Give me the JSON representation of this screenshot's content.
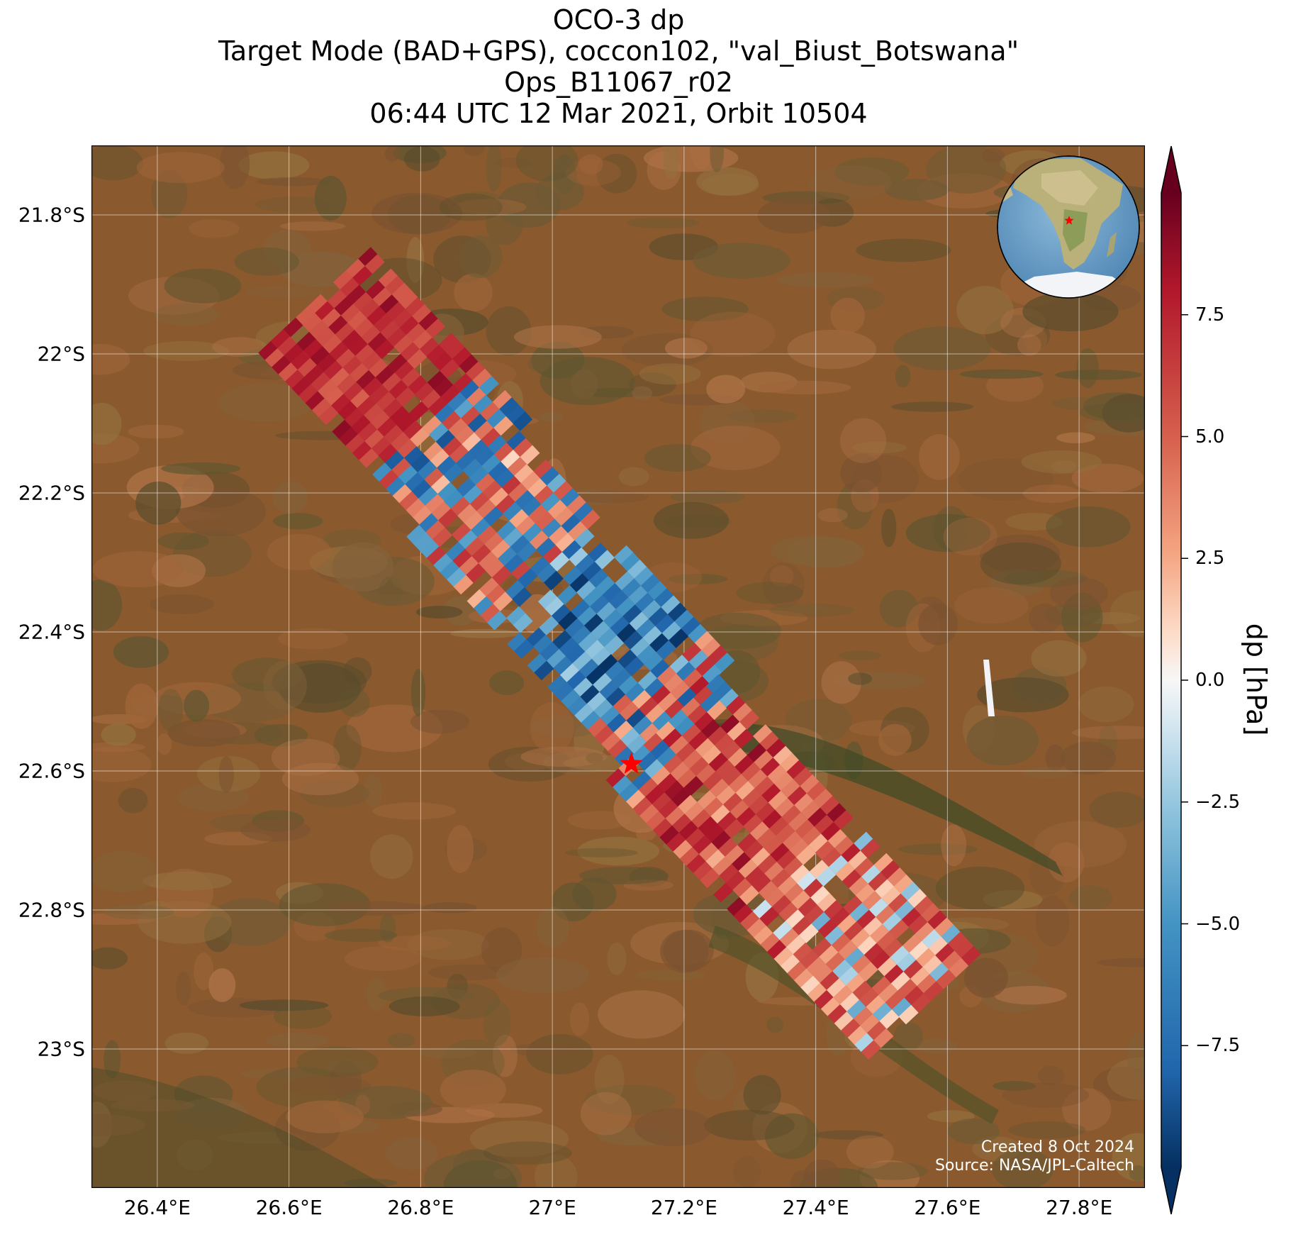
{
  "title": {
    "line1": "OCO-3 dp",
    "line2": "Target Mode (BAD+GPS), coccon102, \"val_Biust_Botswana\"",
    "line3": "Ops_B11067_r02",
    "line4": "06:44 UTC 12 Mar 2021, Orbit 10504"
  },
  "credits": {
    "created": "Created 8 Oct 2024",
    "source": "Source: NASA/JPL-Caltech"
  },
  "colorbar": {
    "label": "dp [hPa]",
    "vmin": -10,
    "vmax": 10,
    "ticks": [
      "−7.5",
      "−5.0",
      "−2.5",
      "0.0",
      "2.5",
      "5.0",
      "7.5"
    ],
    "tick_values": [
      -7.5,
      -5.0,
      -2.5,
      0.0,
      2.5,
      5.0,
      7.5
    ],
    "colormap": "RdBu_r",
    "extend": "both"
  },
  "map": {
    "basemap": "satellite",
    "lon_range": [
      26.3,
      27.9
    ],
    "lat_range": [
      -23.2,
      -21.7
    ],
    "x_ticks": [
      "26.4°E",
      "26.6°E",
      "26.8°E",
      "27°E",
      "27.2°E",
      "27.4°E",
      "27.6°E",
      "27.8°E"
    ],
    "x_tick_values": [
      26.4,
      26.6,
      26.8,
      27.0,
      27.2,
      27.4,
      27.6,
      27.8
    ],
    "y_ticks": [
      "21.8°S",
      "22°S",
      "22.2°S",
      "22.4°S",
      "22.6°S",
      "22.8°S",
      "23°S"
    ],
    "y_tick_values": [
      -21.8,
      -22.0,
      -22.2,
      -22.4,
      -22.6,
      -22.8,
      -23.0
    ],
    "gridlines": true,
    "target_marker": {
      "name": "val_Biust_Botswana",
      "lon": 27.12,
      "lat": -22.59,
      "color": "#ff0000",
      "symbol": "star"
    },
    "inset_globe": {
      "marker_color": "#ff0000"
    }
  }
}
